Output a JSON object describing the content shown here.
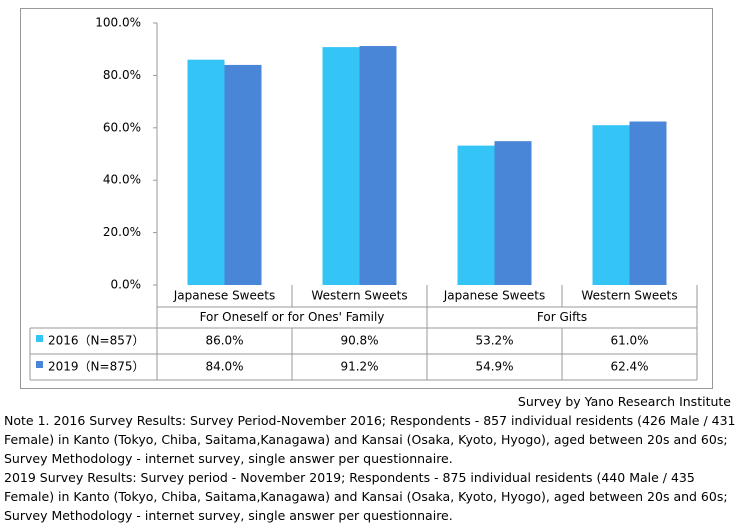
{
  "chart_data": {
    "type": "bar",
    "categories": [
      "Japanese Sweets",
      "Western Sweets",
      "Japanese Sweets",
      "Western Sweets"
    ],
    "groups": [
      {
        "label": "For Oneself or for Ones' Family",
        "span": 2
      },
      {
        "label": "For Gifts",
        "span": 2
      }
    ],
    "series": [
      {
        "name": "2016（N=857）",
        "color": "#35c4f6",
        "values": [
          86.0,
          90.8,
          53.2,
          61.0
        ],
        "value_labels": [
          "86.0%",
          "90.8%",
          "53.2%",
          "61.0%"
        ]
      },
      {
        "name": "2019（N=875）",
        "color": "#4a86d8",
        "values": [
          84.0,
          91.2,
          54.9,
          62.4
        ],
        "value_labels": [
          "84.0%",
          "91.2%",
          "54.9%",
          "62.4%"
        ]
      }
    ],
    "ylim": [
      0,
      100
    ],
    "yticks": [
      {
        "value": 0,
        "label": "0.0%"
      },
      {
        "value": 20,
        "label": "20.0%"
      },
      {
        "value": 40,
        "label": "40.0%"
      },
      {
        "value": 60,
        "label": "60.0%"
      },
      {
        "value": 80,
        "label": "80.0%"
      },
      {
        "value": 100,
        "label": "100.0%"
      }
    ]
  },
  "source": "Survey by Yano Research Institute",
  "notes": [
    "Note 1. 2016 Survey Results: Survey Period-November 2016; Respondents - 857 individual residents (426 Male / 431 Female) in Kanto (Tokyo, Chiba, Saitama,Kanagawa) and Kansai (Osaka, Kyoto, Hyogo), aged between 20s and 60s; Survey Methodology - internet survey, single answer per questionnaire.",
    "2019 Survey Results: Survey period - November 2019; Respondents - 875 individual residents (440 Male / 435 Female) in Kanto (Tokyo, Chiba, Saitama,Kanagawa) and Kansai (Osaka, Kyoto, Hyogo), aged between 20s and 60s; Survey Methodology - internet survey, single answer per questionnaire."
  ]
}
